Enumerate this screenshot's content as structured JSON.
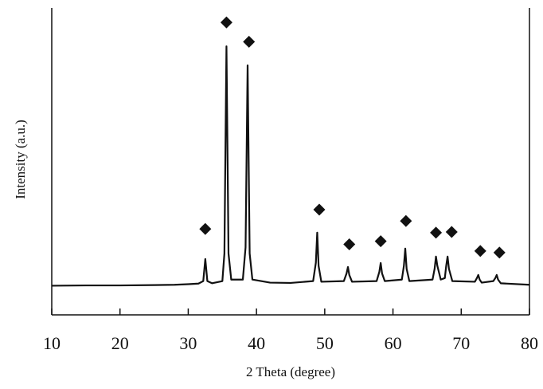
{
  "chart_data": {
    "type": "line",
    "x_label": "2 Theta (degree)",
    "y_label": "Intensity (a.u.)",
    "xlim": [
      10,
      80
    ],
    "xticks": [
      10,
      20,
      30,
      40,
      50,
      60,
      70,
      80
    ],
    "ylim": [
      0,
      100
    ],
    "series": [
      {
        "color": "#111111",
        "x": [
          10,
          15,
          20,
          25,
          28,
          30,
          31.5,
          32.2,
          32.5,
          32.8,
          33.5,
          35.0,
          35.3,
          35.6,
          35.9,
          36.3,
          38.0,
          38.4,
          38.7,
          39.0,
          39.4,
          42,
          45,
          48.3,
          48.7,
          48.9,
          49.1,
          49.5,
          52.8,
          53.2,
          53.4,
          53.6,
          54.0,
          57.6,
          58.0,
          58.2,
          58.4,
          58.8,
          61.3,
          61.6,
          61.8,
          62.0,
          62.4,
          65.8,
          66.1,
          66.3,
          66.5,
          67.0,
          67.6,
          67.8,
          68.0,
          68.2,
          68.7,
          72.0,
          72.3,
          72.5,
          72.7,
          73.0,
          74.7,
          75.0,
          75.2,
          75.4,
          75.8,
          80
        ],
        "values": [
          9.5,
          9.6,
          9.6,
          9.7,
          9.8,
          10,
          10.2,
          11,
          18.2,
          11,
          10.3,
          11,
          20,
          87.5,
          20,
          11.5,
          11.5,
          22,
          81.3,
          20,
          11.5,
          10.5,
          10.4,
          11,
          17,
          26.8,
          16,
          10.8,
          11,
          13.5,
          15.6,
          13,
          10.8,
          11,
          14,
          16.9,
          13.5,
          11,
          11.5,
          16,
          21.6,
          15,
          11,
          11.5,
          15,
          19,
          16,
          11.5,
          12,
          16,
          19,
          15,
          11,
          10.8,
          12,
          13,
          11.5,
          10.5,
          11,
          12,
          13,
          11.5,
          10.3,
          9.8
        ]
      },
      {
        "type": "scatter",
        "marker": "diamond",
        "color": "#111111",
        "x": [
          32.5,
          35.6,
          38.9,
          49.2,
          53.6,
          58.2,
          61.9,
          66.3,
          68.6,
          72.8,
          75.6
        ],
        "values": [
          28,
          95.3,
          89,
          34.3,
          23,
          24,
          30.6,
          26.8,
          27,
          20.8,
          20.3
        ]
      }
    ]
  }
}
